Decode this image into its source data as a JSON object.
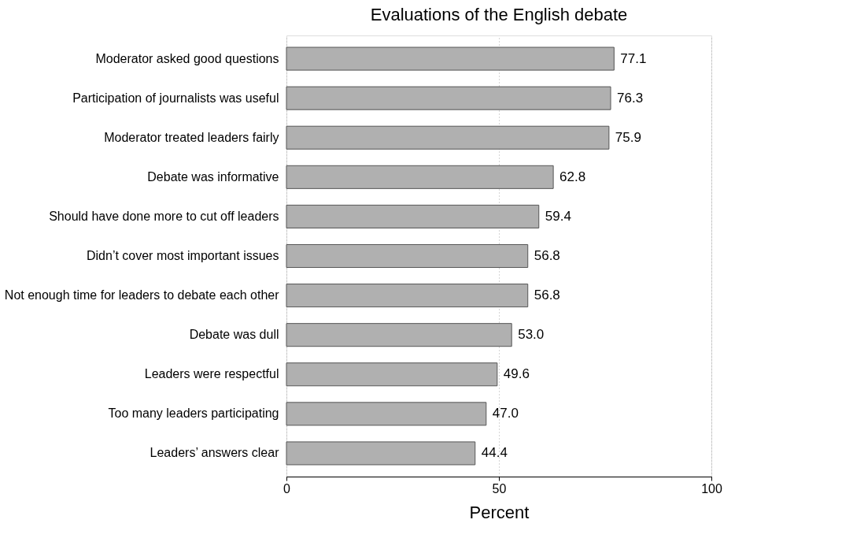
{
  "chart_data": {
    "type": "bar",
    "orientation": "horizontal",
    "title": "Evaluations of the English debate",
    "xlabel": "Percent",
    "categories": [
      "Moderator asked good questions",
      "Participation of journalists was useful",
      "Moderator treated leaders fairly",
      "Debate was informative",
      "Should have done more to cut off leaders",
      "Didn’t cover most important issues",
      "Not enough time for leaders to debate each other",
      "Debate was dull",
      "Leaders were respectful",
      "Too many leaders participating",
      "Leaders’ answers clear"
    ],
    "values": [
      77.1,
      76.3,
      75.9,
      62.8,
      59.4,
      56.8,
      56.8,
      53.0,
      49.6,
      47.0,
      44.4
    ],
    "value_labels": [
      "77.1",
      "76.3",
      "75.9",
      "62.8",
      "59.4",
      "56.8",
      "56.8",
      "53.0",
      "49.6",
      "47.0",
      "44.4"
    ],
    "color": "#b0b0b0",
    "xlim": [
      0,
      100
    ],
    "xticks": [
      0,
      50,
      100
    ],
    "grid": "x"
  }
}
